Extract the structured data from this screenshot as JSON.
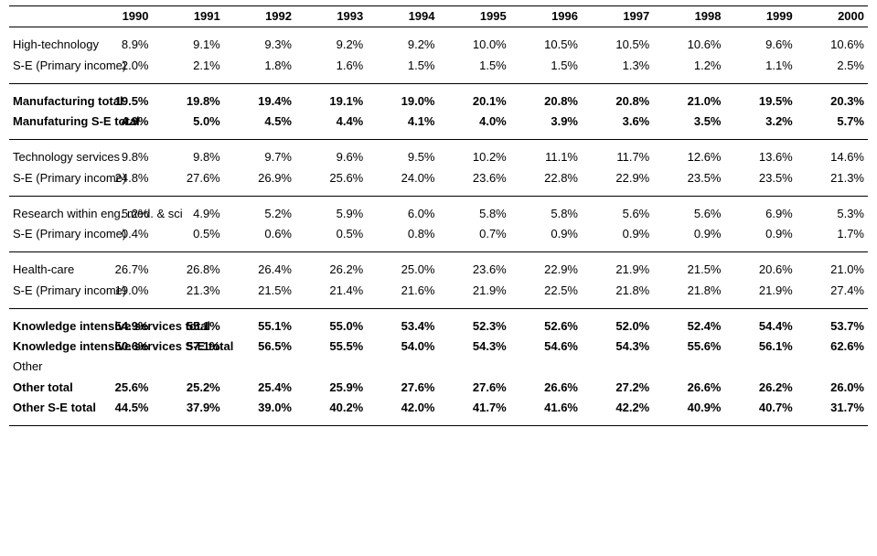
{
  "background_color": "#ffffff",
  "text_color": "#000000",
  "border_color": "#000000",
  "font_family": "Arial",
  "header_fontsize": 13,
  "cell_fontsize": 13,
  "years": [
    "1990",
    "1991",
    "1992",
    "1993",
    "1994",
    "1995",
    "1996",
    "1997",
    "1998",
    "1999",
    "2000"
  ],
  "sections": [
    {
      "rows": [
        {
          "label": "High-technology",
          "bold": false,
          "values": [
            "8.9%",
            "9.1%",
            "9.3%",
            "9.2%",
            "9.2%",
            "10.0%",
            "10.5%",
            "10.5%",
            "10.6%",
            "9.6%",
            "10.6%"
          ]
        },
        {
          "label": "S-E (Primary income)",
          "bold": false,
          "values": [
            "2.0%",
            "2.1%",
            "1.8%",
            "1.6%",
            "1.5%",
            "1.5%",
            "1.5%",
            "1.3%",
            "1.2%",
            "1.1%",
            "2.5%"
          ]
        }
      ]
    },
    {
      "rows": [
        {
          "label": "Manufacturing total",
          "bold": true,
          "values": [
            "19.5%",
            "19.8%",
            "19.4%",
            "19.1%",
            "19.0%",
            "20.1%",
            "20.8%",
            "20.8%",
            "21.0%",
            "19.5%",
            "20.3%"
          ]
        },
        {
          "label": "Manufaturing S-E total",
          "bold": true,
          "values": [
            "4.9%",
            "5.0%",
            "4.5%",
            "4.4%",
            "4.1%",
            "4.0%",
            "3.9%",
            "3.6%",
            "3.5%",
            "3.2%",
            "5.7%"
          ]
        }
      ]
    },
    {
      "rows": [
        {
          "label": "Technology services",
          "bold": false,
          "values": [
            "9.8%",
            "9.8%",
            "9.7%",
            "9.6%",
            "9.5%",
            "10.2%",
            "11.1%",
            "11.7%",
            "12.6%",
            "13.6%",
            "14.6%"
          ]
        },
        {
          "label": "S-E (Primary income)",
          "bold": false,
          "values": [
            "24.8%",
            "27.6%",
            "26.9%",
            "25.6%",
            "24.0%",
            "23.6%",
            "22.8%",
            "22.9%",
            "23.5%",
            "23.5%",
            "21.3%"
          ]
        }
      ]
    },
    {
      "rows": [
        {
          "label": "Research within eng. med. & sci",
          "bold": false,
          "wrap": true,
          "values": [
            "5.2%",
            "4.9%",
            "5.2%",
            "5.9%",
            "6.0%",
            "5.8%",
            "5.8%",
            "5.6%",
            "5.6%",
            "6.9%",
            "5.3%"
          ]
        },
        {
          "label": "S-E (Primary income)",
          "bold": false,
          "values": [
            "0.4%",
            "0.5%",
            "0.6%",
            "0.5%",
            "0.8%",
            "0.7%",
            "0.9%",
            "0.9%",
            "0.9%",
            "0.9%",
            "1.7%"
          ]
        }
      ]
    },
    {
      "rows": [
        {
          "label": "Health-care",
          "bold": false,
          "values": [
            "26.7%",
            "26.8%",
            "26.4%",
            "26.2%",
            "25.0%",
            "23.6%",
            "22.9%",
            "21.9%",
            "21.5%",
            "20.6%",
            "21.0%"
          ]
        },
        {
          "label": "S-E (Primary income)",
          "bold": false,
          "values": [
            "19.0%",
            "21.3%",
            "21.5%",
            "21.4%",
            "21.6%",
            "21.9%",
            "22.5%",
            "21.8%",
            "21.8%",
            "21.9%",
            "27.4%"
          ]
        }
      ]
    },
    {
      "rows": [
        {
          "label": "Knowledge intensive services total",
          "bold": true,
          "wrap": true,
          "values": [
            "54.9%",
            "55.1%",
            "55.1%",
            "55.0%",
            "53.4%",
            "52.3%",
            "52.6%",
            "52.0%",
            "52.4%",
            "54.4%",
            "53.7%"
          ]
        },
        {
          "label": "Knowledge intensive services S-E total",
          "bold": true,
          "wrap": true,
          "values": [
            "50.6%",
            "57.1%",
            "56.5%",
            "55.5%",
            "54.0%",
            "54.3%",
            "54.6%",
            "54.3%",
            "55.6%",
            "56.1%",
            "62.6%"
          ]
        },
        {
          "label": "Other",
          "bold": false,
          "values": [
            "",
            "",
            "",
            "",
            "",
            "",
            "",
            "",
            "",
            "",
            ""
          ]
        },
        {
          "label": "Other total",
          "bold": true,
          "values": [
            "25.6%",
            "25.2%",
            "25.4%",
            "25.9%",
            "27.6%",
            "27.6%",
            "26.6%",
            "27.2%",
            "26.6%",
            "26.2%",
            "26.0%"
          ]
        },
        {
          "label": "Other S-E total",
          "bold": true,
          "values": [
            "44.5%",
            "37.9%",
            "39.0%",
            "40.2%",
            "42.0%",
            "41.7%",
            "41.6%",
            "42.2%",
            "40.9%",
            "40.7%",
            "31.7%"
          ]
        }
      ]
    }
  ]
}
